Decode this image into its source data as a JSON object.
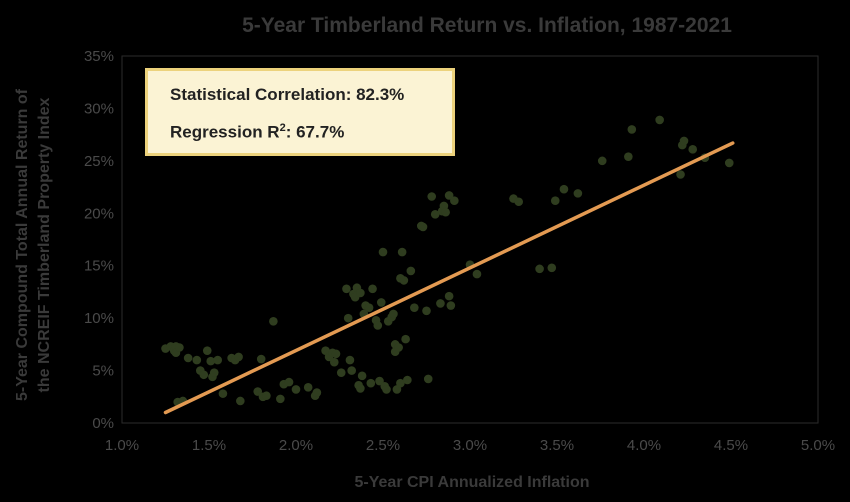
{
  "chart_data": {
    "type": "scatter",
    "title": "5-Year Timberland Return vs. Inflation, 1987-2021",
    "xlabel": "5-Year CPI Annualized Inflation",
    "ylabel_line1": "5-Year Compound Total Annual Return of",
    "ylabel_line2": "the NCREIF Timberland Property Index",
    "xlim": [
      1.0,
      5.0
    ],
    "ylim": [
      0,
      35
    ],
    "x_ticks": [
      1.0,
      1.5,
      2.0,
      2.5,
      3.0,
      3.5,
      4.0,
      4.5,
      5.0
    ],
    "y_ticks": [
      0,
      5,
      10,
      15,
      20,
      25,
      30,
      35
    ],
    "x_tick_labels": [
      "1.0%",
      "1.5%",
      "2.0%",
      "2.5%",
      "3.0%",
      "3.5%",
      "4.0%",
      "4.5%",
      "5.0%"
    ],
    "y_tick_labels": [
      "0%",
      "5%",
      "10%",
      "15%",
      "20%",
      "25%",
      "30%",
      "35%"
    ],
    "grid": false,
    "point_color": "#2f3d1f",
    "trendline_color": "#e39a52",
    "trendline": {
      "x": [
        1.25,
        4.51
      ],
      "y": [
        1.0,
        26.7
      ]
    },
    "annotation": {
      "correlation_label": "Statistical Correlation: 82.3%",
      "r2_prefix": "Regression R",
      "r2_sup": "2",
      "r2_suffix": ": 67.7%"
    },
    "points": [
      [
        1.25,
        7.1
      ],
      [
        1.28,
        7.3
      ],
      [
        1.3,
        6.9
      ],
      [
        1.31,
        7.3
      ],
      [
        1.31,
        6.7
      ],
      [
        1.33,
        7.2
      ],
      [
        1.32,
        2.0
      ],
      [
        1.35,
        2.1
      ],
      [
        1.38,
        6.2
      ],
      [
        1.43,
        6.0
      ],
      [
        1.45,
        5.0
      ],
      [
        1.47,
        4.6
      ],
      [
        1.49,
        6.9
      ],
      [
        1.51,
        5.9
      ],
      [
        1.52,
        4.4
      ],
      [
        1.53,
        4.8
      ],
      [
        1.55,
        6.0
      ],
      [
        1.58,
        2.8
      ],
      [
        1.63,
        6.2
      ],
      [
        1.65,
        6.0
      ],
      [
        1.67,
        6.3
      ],
      [
        1.68,
        2.1
      ],
      [
        1.78,
        3.0
      ],
      [
        1.8,
        6.1
      ],
      [
        1.81,
        2.5
      ],
      [
        1.83,
        2.6
      ],
      [
        1.87,
        9.7
      ],
      [
        1.91,
        2.3
      ],
      [
        1.93,
        3.7
      ],
      [
        1.96,
        3.9
      ],
      [
        2.0,
        3.2
      ],
      [
        2.07,
        3.4
      ],
      [
        2.11,
        2.6
      ],
      [
        2.12,
        2.9
      ],
      [
        2.17,
        6.9
      ],
      [
        2.19,
        6.3
      ],
      [
        2.21,
        6.7
      ],
      [
        2.22,
        5.8
      ],
      [
        2.23,
        6.6
      ],
      [
        2.26,
        4.8
      ],
      [
        2.29,
        12.8
      ],
      [
        2.3,
        10.0
      ],
      [
        2.31,
        6.0
      ],
      [
        2.32,
        5.0
      ],
      [
        2.33,
        12.3
      ],
      [
        2.34,
        12.0
      ],
      [
        2.35,
        12.9
      ],
      [
        2.36,
        3.6
      ],
      [
        2.37,
        12.4
      ],
      [
        2.37,
        3.3
      ],
      [
        2.38,
        4.5
      ],
      [
        2.39,
        10.4
      ],
      [
        2.4,
        11.2
      ],
      [
        2.42,
        11.0
      ],
      [
        2.43,
        3.8
      ],
      [
        2.44,
        12.8
      ],
      [
        2.46,
        9.8
      ],
      [
        2.47,
        9.3
      ],
      [
        2.48,
        4.0
      ],
      [
        2.49,
        11.5
      ],
      [
        2.5,
        16.3
      ],
      [
        2.51,
        3.5
      ],
      [
        2.52,
        3.2
      ],
      [
        2.53,
        9.7
      ],
      [
        2.55,
        10.1
      ],
      [
        2.56,
        10.4
      ],
      [
        2.57,
        6.8
      ],
      [
        2.57,
        7.5
      ],
      [
        2.58,
        3.2
      ],
      [
        2.59,
        7.2
      ],
      [
        2.6,
        13.8
      ],
      [
        2.6,
        3.8
      ],
      [
        2.61,
        16.3
      ],
      [
        2.62,
        13.6
      ],
      [
        2.63,
        8.0
      ],
      [
        2.64,
        4.1
      ],
      [
        2.66,
        14.5
      ],
      [
        2.68,
        11.0
      ],
      [
        2.72,
        18.8
      ],
      [
        2.73,
        18.7
      ],
      [
        2.75,
        10.7
      ],
      [
        2.76,
        4.2
      ],
      [
        2.78,
        21.6
      ],
      [
        2.8,
        19.9
      ],
      [
        2.83,
        11.4
      ],
      [
        2.84,
        20.2
      ],
      [
        2.85,
        20.7
      ],
      [
        2.86,
        20.1
      ],
      [
        2.88,
        12.1
      ],
      [
        2.88,
        21.7
      ],
      [
        2.89,
        11.2
      ],
      [
        2.91,
        21.2
      ],
      [
        3.0,
        15.1
      ],
      [
        3.04,
        14.2
      ],
      [
        3.25,
        21.4
      ],
      [
        3.28,
        21.1
      ],
      [
        3.4,
        14.7
      ],
      [
        3.47,
        14.8
      ],
      [
        3.49,
        21.2
      ],
      [
        3.54,
        22.3
      ],
      [
        3.62,
        21.9
      ],
      [
        3.76,
        25.0
      ],
      [
        3.91,
        25.4
      ],
      [
        3.93,
        28.0
      ],
      [
        4.09,
        28.9
      ],
      [
        4.21,
        23.7
      ],
      [
        4.22,
        26.5
      ],
      [
        4.23,
        26.9
      ],
      [
        4.28,
        26.1
      ],
      [
        4.35,
        25.3
      ],
      [
        4.49,
        24.8
      ]
    ]
  }
}
